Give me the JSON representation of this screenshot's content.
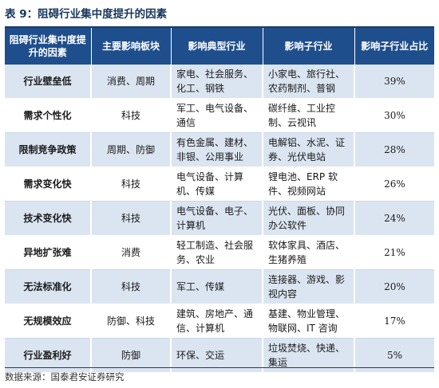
{
  "title": "表 9：阻碍行业集中度提升的因素",
  "table": {
    "headers": [
      "阻碍行业集中度提升的因素",
      "主要影响板块",
      "影响典型行业",
      "影响子行业",
      "影响子行业占比"
    ],
    "rows": [
      {
        "factor": "行业壁垒低",
        "block": "消费、周期",
        "industry": "家电、社会服务、化工、钢铁",
        "sub": "小家电、旅行社、农药制剂、普钢",
        "pct": "39%"
      },
      {
        "factor": "需求个性化",
        "block": "科技",
        "industry": "军工、电气设备、通信",
        "sub": "碳纤维、工业控制、云视讯",
        "pct": "30%"
      },
      {
        "factor": "限制竞争政策",
        "block": "周期、防御",
        "industry": "有色金属、建材、非银、公用事业",
        "sub": "电解铝、水泥、证券、光伏电站",
        "pct": "28%"
      },
      {
        "factor": "需求变化快",
        "block": "科技",
        "industry": "电气设备、计算机、传媒",
        "sub": "锂电池、ERP 软件、视频网站",
        "pct": "26%"
      },
      {
        "factor": "技术变化快",
        "block": "科技",
        "industry": "电气设备、电子、计算机",
        "sub": "光伏、面板、协同办公软件",
        "pct": "24%"
      },
      {
        "factor": "异地扩张难",
        "block": "消费",
        "industry": "轻工制造、社会服务、农业",
        "sub": "软体家具、酒店、生猪养殖",
        "pct": "21%"
      },
      {
        "factor": "无法标准化",
        "block": "科技",
        "industry": "军工、传媒",
        "sub": "连接器、游戏、影视内容",
        "pct": "20%"
      },
      {
        "factor": "无规模效应",
        "block": "防御、科技",
        "industry": "建筑、房地产、通信、计算机",
        "sub": "基建、物业管理、物联网、IT 咨询",
        "pct": "17%"
      },
      {
        "factor": "行业盈利好",
        "block": "防御",
        "industry": "环保、交运",
        "sub": "垃圾焚烧、快递、集运",
        "pct": "5%"
      }
    ]
  },
  "source": "数据来源：国泰君安证券研究"
}
